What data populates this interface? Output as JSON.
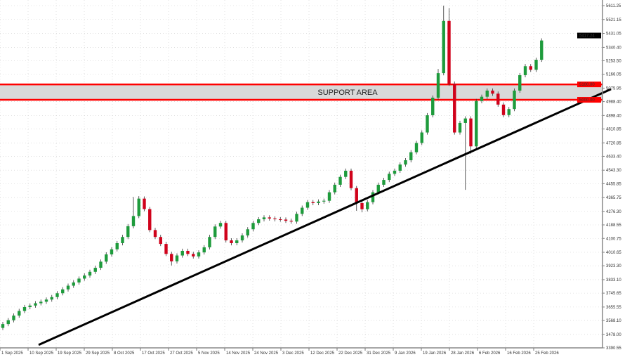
{
  "chart_data": {
    "type": "candlestick",
    "title": "",
    "ylim": [
      3390.55,
      5611.25
    ],
    "y_ticks": [
      "5611.25",
      "5521.15",
      "5431.05",
      "5340.40",
      "5253.50",
      "5166.05",
      "5075.95",
      "4988.40",
      "4898.40",
      "4810.85",
      "4720.85",
      "4633.40",
      "4543.30",
      "4455.85",
      "4365.75",
      "4276.30",
      "4188.55",
      "4100.75",
      "4010.65",
      "3923.30",
      "3833.10",
      "3745.65",
      "3655.55",
      "3568.10",
      "3478.00",
      "3390.55"
    ],
    "x_ticks": [
      "1 Sep 2025",
      "10 Sep 2025",
      "19 Sep 2025",
      "29 Sep 2025",
      "8 Oct 2025",
      "17 Oct 2025",
      "27 Oct 2025",
      "5 Nov 2025",
      "14 Nov 2025",
      "24 Nov 2025",
      "3 Dec 2025",
      "12 Dec 2025",
      "22 Dec 2025",
      "31 Dec 2025",
      "9 Jan 2026",
      "19 Jan 2026",
      "28 Jan 2026",
      "6 Feb 2026",
      "16 Feb 2026",
      "25 Feb 2026"
    ],
    "grid": true,
    "close": [
      3545,
      3570,
      3600,
      3630,
      3655,
      3665,
      3680,
      3690,
      3704,
      3720,
      3745,
      3770,
      3794,
      3815,
      3840,
      3860,
      3884,
      3910,
      3950,
      3997,
      4030,
      4070,
      4110,
      4180,
      4246,
      4359,
      4291,
      4155,
      4110,
      4065,
      4000,
      3952,
      3990,
      4020,
      4000,
      3984,
      4010,
      4043,
      4110,
      4178,
      4201,
      4088,
      4070,
      4088,
      4120,
      4160,
      4201,
      4225,
      4237,
      4230,
      4225,
      4223,
      4215,
      4210,
      4260,
      4300,
      4336,
      4330,
      4340,
      4345,
      4400,
      4449,
      4500,
      4540,
      4427,
      4330,
      4290,
      4336,
      4400,
      4449,
      4480,
      4520,
      4540,
      4580,
      4608,
      4660,
      4720,
      4788,
      4900,
      5014,
      5173,
      5512,
      5105,
      4788,
      4850,
      4879,
      4698,
      4992,
      5020,
      5060,
      5040,
      4969,
      4901,
      4940,
      5060,
      5160,
      5218,
      5195,
      5260,
      5385
    ],
    "first_open": 3520,
    "high_overrides": {
      "24": 4370,
      "25": 4375,
      "81": 5611,
      "82": 5595,
      "80": 5200
    },
    "low_overrides": {
      "85": 4416,
      "86": 4650,
      "31": 3925,
      "65": 4280,
      "66": 4270
    },
    "support_area": {
      "label": "SUPPORT AREA",
      "upper": 5100,
      "lower": 5000,
      "upper_label": "5100.00",
      "lower_label": "5000.00"
    },
    "trendline": {
      "start_price": 3410,
      "end_price": 5069
    },
    "current_price": {
      "label": "5417.24",
      "value": 5417.24
    },
    "colors": {
      "bull": "#1e9b3c",
      "bear": "#d0021b",
      "support": "#ff0000",
      "support_fill": "#d9d9d9",
      "trendline": "#000000",
      "current_price_bg": "#000000"
    }
  }
}
